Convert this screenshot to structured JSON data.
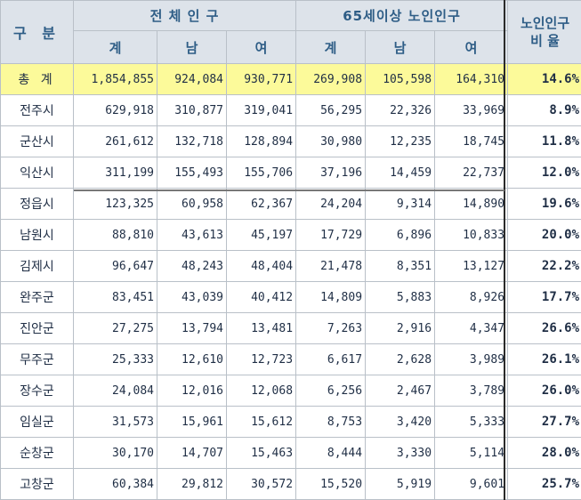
{
  "header": {
    "gubun": "구 분",
    "total_population": "전 체 인 구",
    "elderly_population": "65세이상 노인인구",
    "elderly_ratio_line1": "노인인구",
    "elderly_ratio_line2": "비 율",
    "sub": [
      "계",
      "남",
      "여",
      "계",
      "남",
      "여"
    ]
  },
  "rows": [
    {
      "name": "총 계",
      "total": "1,854,855",
      "male": "924,084",
      "female": "930,771",
      "e_total": "269,908",
      "e_male": "105,598",
      "e_female": "164,310",
      "ratio": "14.6%"
    },
    {
      "name": "전주시",
      "total": "629,918",
      "male": "310,877",
      "female": "319,041",
      "e_total": "56,295",
      "e_male": "22,326",
      "e_female": "33,969",
      "ratio": "8.9%"
    },
    {
      "name": "군산시",
      "total": "261,612",
      "male": "132,718",
      "female": "128,894",
      "e_total": "30,980",
      "e_male": "12,235",
      "e_female": "18,745",
      "ratio": "11.8%"
    },
    {
      "name": "익산시",
      "total": "311,199",
      "male": "155,493",
      "female": "155,706",
      "e_total": "37,196",
      "e_male": "14,459",
      "e_female": "22,737",
      "ratio": "12.0%"
    },
    {
      "name": "정읍시",
      "total": "123,325",
      "male": "60,958",
      "female": "62,367",
      "e_total": "24,204",
      "e_male": "9,314",
      "e_female": "14,890",
      "ratio": "19.6%"
    },
    {
      "name": "남원시",
      "total": "88,810",
      "male": "43,613",
      "female": "45,197",
      "e_total": "17,729",
      "e_male": "6,896",
      "e_female": "10,833",
      "ratio": "20.0%"
    },
    {
      "name": "김제시",
      "total": "96,647",
      "male": "48,243",
      "female": "48,404",
      "e_total": "21,478",
      "e_male": "8,351",
      "e_female": "13,127",
      "ratio": "22.2%"
    },
    {
      "name": "완주군",
      "total": "83,451",
      "male": "43,039",
      "female": "40,412",
      "e_total": "14,809",
      "e_male": "5,883",
      "e_female": "8,926",
      "ratio": "17.7%"
    },
    {
      "name": "진안군",
      "total": "27,275",
      "male": "13,794",
      "female": "13,481",
      "e_total": "7,263",
      "e_male": "2,916",
      "e_female": "4,347",
      "ratio": "26.6%"
    },
    {
      "name": "무주군",
      "total": "25,333",
      "male": "12,610",
      "female": "12,723",
      "e_total": "6,617",
      "e_male": "2,628",
      "e_female": "3,989",
      "ratio": "26.1%"
    },
    {
      "name": "장수군",
      "total": "24,084",
      "male": "12,016",
      "female": "12,068",
      "e_total": "6,256",
      "e_male": "2,467",
      "e_female": "3,789",
      "ratio": "26.0%"
    },
    {
      "name": "임실군",
      "total": "31,573",
      "male": "15,961",
      "female": "15,612",
      "e_total": "8,753",
      "e_male": "3,420",
      "e_female": "5,333",
      "ratio": "27.7%"
    },
    {
      "name": "순창군",
      "total": "30,170",
      "male": "14,707",
      "female": "15,463",
      "e_total": "8,444",
      "e_male": "3,330",
      "e_female": "5,114",
      "ratio": "28.0%"
    },
    {
      "name": "고창군",
      "total": "60,384",
      "male": "29,812",
      "female": "30,572",
      "e_total": "15,520",
      "e_male": "5,919",
      "e_female": "9,601",
      "ratio": "25.7%"
    }
  ],
  "colors": {
    "header_bg": "#dde3ea",
    "header_text": "#2e5d86",
    "total_row_bg": "#fcfa9a",
    "cell_text": "#1f2e45",
    "grid_line": "#b9c0c8"
  }
}
